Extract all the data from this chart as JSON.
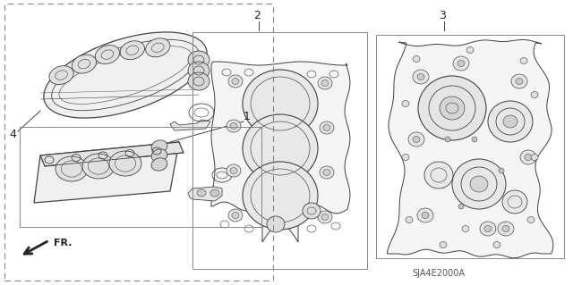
{
  "bg_color": "#ffffff",
  "part_code": "SJA4E2000A",
  "line_color": "#444444",
  "lw_main": 0.9,
  "lw_thin": 0.6,
  "fig_w": 6.4,
  "fig_h": 3.19
}
